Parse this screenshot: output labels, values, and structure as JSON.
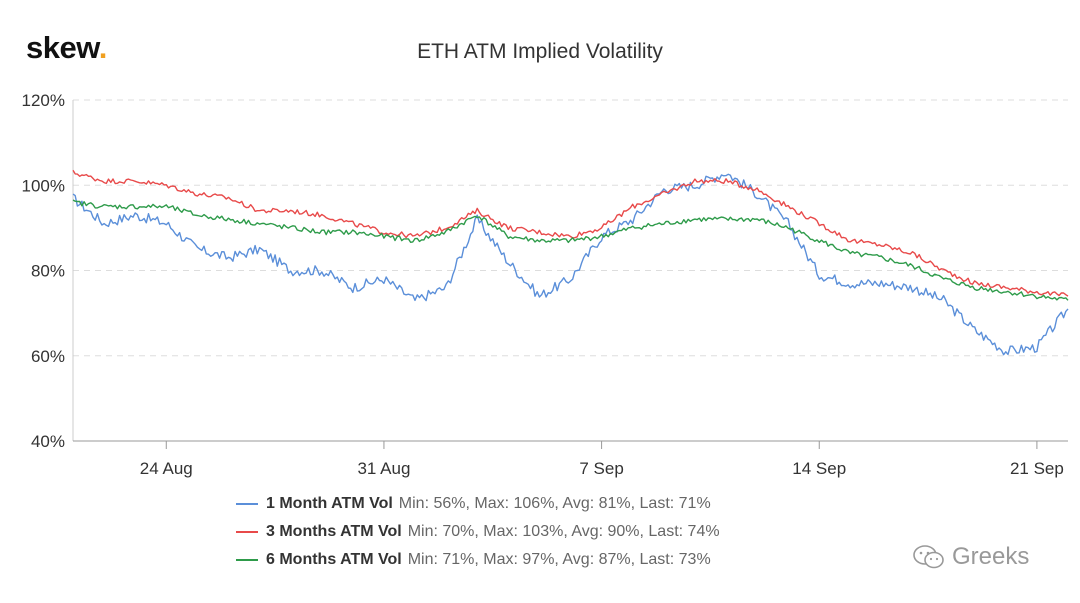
{
  "brand": {
    "name": "skew",
    "dot": "."
  },
  "watermark": {
    "text": "Greeks",
    "icon": "wechat-icon"
  },
  "chart_data": {
    "type": "line",
    "title": "ETH ATM Implied Volatility",
    "xlabel": "",
    "ylabel": "",
    "x_ticks": [
      "24 Aug",
      "31 Aug",
      "7 Sep",
      "14 Sep",
      "21 Sep"
    ],
    "y_ticks": [
      "40%",
      "60%",
      "80%",
      "100%",
      "120%"
    ],
    "xlim": [
      "2020-08-21",
      "2020-09-22"
    ],
    "ylim": [
      40,
      120
    ],
    "grid": "horizontal dashed",
    "legend_position": "bottom",
    "x": [
      "2020-08-21",
      "2020-08-22",
      "2020-08-23",
      "2020-08-24",
      "2020-08-25",
      "2020-08-26",
      "2020-08-27",
      "2020-08-28",
      "2020-08-29",
      "2020-08-30",
      "2020-08-31",
      "2020-09-01",
      "2020-09-02",
      "2020-09-03",
      "2020-09-04",
      "2020-09-05",
      "2020-09-06",
      "2020-09-07",
      "2020-09-08",
      "2020-09-09",
      "2020-09-10",
      "2020-09-11",
      "2020-09-12",
      "2020-09-13",
      "2020-09-14",
      "2020-09-15",
      "2020-09-16",
      "2020-09-17",
      "2020-09-18",
      "2020-09-19",
      "2020-09-20",
      "2020-09-21",
      "2020-09-22"
    ],
    "series": [
      {
        "name": "1 Month ATM Vol",
        "color": "#5b8fd9",
        "stats": "Min: 56%, Max: 106%, Avg: 81%, Last: 71%",
        "values": [
          97,
          91,
          93,
          91,
          85,
          83,
          85,
          80,
          80,
          76,
          78,
          73,
          76,
          92,
          82,
          74,
          78,
          88,
          92,
          99,
          100,
          103,
          98,
          91,
          79,
          77,
          77,
          76,
          73,
          66,
          61,
          62,
          71
        ]
      },
      {
        "name": "3 Months ATM Vol",
        "color": "#e84a4a",
        "stats": "Min: 70%, Max: 103%, Avg: 90%, Last: 74%",
        "values": [
          103,
          101,
          101,
          100,
          98,
          97,
          94,
          94,
          93,
          91,
          89,
          88,
          90,
          94,
          90,
          89,
          88,
          90,
          95,
          98,
          101,
          101,
          99,
          95,
          91,
          87,
          86,
          84,
          80,
          77,
          76,
          75,
          74
        ]
      },
      {
        "name": "6 Months ATM Vol",
        "color": "#2e9b4a",
        "stats": "Min: 71%, Max: 97%, Avg: 87%, Last: 73%",
        "values": [
          96,
          95,
          95,
          95,
          93,
          92,
          91,
          90,
          89,
          89,
          88,
          87,
          89,
          93,
          88,
          87,
          87,
          88,
          90,
          91,
          92,
          92,
          92,
          90,
          87,
          84,
          83,
          81,
          78,
          76,
          75,
          74,
          73
        ]
      }
    ]
  }
}
